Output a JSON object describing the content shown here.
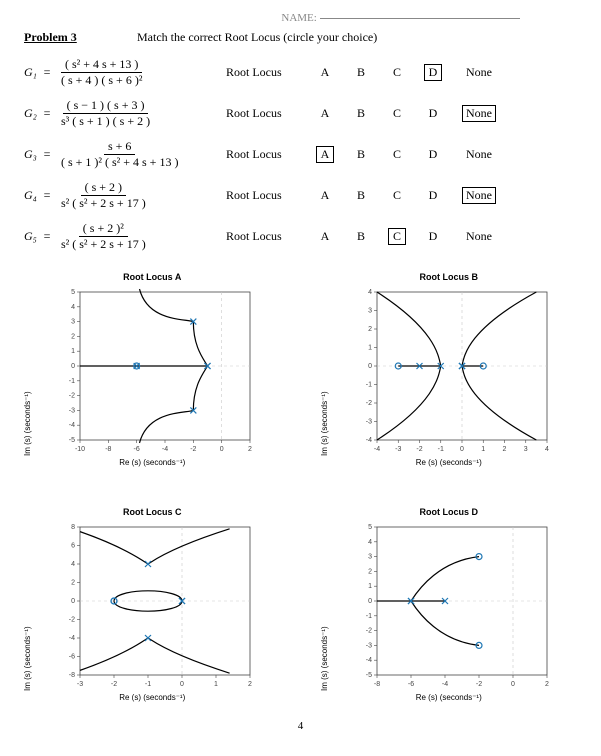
{
  "header": {
    "name_label": "NAME:",
    "problem_title": "Problem 3",
    "instructions": "Match the correct Root Locus (circle your choice)"
  },
  "rows": [
    {
      "gname": "G₁",
      "eq": "=",
      "num": "( s² + 4 s + 13 )",
      "den": "( s + 4 ) ( s + 6 )²",
      "label": "Root Locus",
      "choices": [
        "A",
        "B",
        "C",
        "D",
        "None"
      ],
      "selected_index": 3
    },
    {
      "gname": "G₂",
      "eq": "=",
      "num": "( s − 1 ) ( s + 3 )",
      "den": "s³ ( s + 1 ) ( s + 2 )",
      "label": "Root Locus",
      "choices": [
        "A",
        "B",
        "C",
        "D",
        "None"
      ],
      "selected_index": 4
    },
    {
      "gname": "G₃",
      "eq": "=",
      "num": "s + 6",
      "den": "( s + 1 )² ( s² + 4 s + 13 )",
      "label": "Root Locus",
      "choices": [
        "A",
        "B",
        "C",
        "D",
        "None"
      ],
      "selected_index": 0
    },
    {
      "gname": "G₄",
      "eq": "=",
      "num": "( s + 2 )",
      "den": "s² ( s² + 2 s + 17 )",
      "label": "Root Locus",
      "choices": [
        "A",
        "B",
        "C",
        "D",
        "None"
      ],
      "selected_index": 4
    },
    {
      "gname": "G₅",
      "eq": "=",
      "num": "( s + 2 )²",
      "den": "s² ( s² + 2 s + 17 )",
      "label": "Root Locus",
      "choices": [
        "A",
        "B",
        "C",
        "D",
        "None"
      ],
      "selected_index": 2
    }
  ],
  "plots": {
    "xlabel": "Re (s) (seconds⁻¹)",
    "ylabel": "Im (s) (seconds⁻¹)",
    "grid_color": "#e0e0e0",
    "axis_color": "#444444",
    "curve_color": "#000000",
    "marker_color": "#1f77b4",
    "background": "#ffffff",
    "titles": [
      "Root Locus  A",
      "Root Locus  B",
      "Root Locus  C",
      "Root Locus  D"
    ],
    "A": {
      "xlim": [
        -10,
        2
      ],
      "ylim": [
        -5,
        5
      ],
      "xticks": [
        -10,
        -8,
        -6,
        -4,
        -2,
        0,
        2
      ],
      "yticks": [
        -5,
        -4,
        -3,
        -2,
        -1,
        0,
        1,
        2,
        3,
        4,
        5
      ],
      "poles": [
        [
          -6,
          0
        ],
        [
          -1,
          0
        ],
        [
          -1,
          0
        ],
        [
          -2,
          3
        ],
        [
          -2,
          -3
        ]
      ],
      "zeros": [
        [
          -6,
          0
        ]
      ],
      "segments": [
        "M -6 0 L -10 0",
        "M -1 0 L -6 0",
        "M -2 3 C -2 1.3 -1.3 0.5 -1 0",
        "M -2 -3 C -2 -1.3 -1.3 -0.5 -1 0",
        "M -2 3 C -2.6 3.2 -5.2 3.0 -5.8 5.2",
        "M -2 -3 C -2.6 -3.2 -5.2 -3.0 -5.8 -5.2"
      ]
    },
    "B": {
      "xlim": [
        -4,
        4
      ],
      "ylim": [
        -4,
        4
      ],
      "xticks": [
        -4,
        -3,
        -2,
        -1,
        0,
        1,
        2,
        3,
        4
      ],
      "yticks": [
        -4,
        -3,
        -2,
        -1,
        0,
        1,
        2,
        3,
        4
      ],
      "poles": [
        [
          0,
          0
        ],
        [
          0,
          0
        ],
        [
          0,
          0
        ],
        [
          -1,
          0
        ],
        [
          -2,
          0
        ]
      ],
      "zeros": [
        [
          -3,
          0
        ],
        [
          1,
          0
        ]
      ],
      "segments": [
        "M 0 0 L 1 0",
        "M -1 0 L -2 0",
        "M -2 0 L -3 0",
        "M -1 0 C -1.1 0.6 -1.3 2.0 -4 4",
        "M -1 0 C -1.1 -0.6 -1.3 -2.0 -4 -4",
        "M 0 0 C 0.1 0.6 0.3 2.0 3.5 4",
        "M 0 0 C 0.1 -0.6 0.3 -2.0 3.5 -4"
      ]
    },
    "C": {
      "xlim": [
        -3,
        2
      ],
      "ylim": [
        -8,
        8
      ],
      "xticks": [
        -3,
        -2,
        -1,
        0,
        1,
        2
      ],
      "yticks": [
        -8,
        -6,
        -4,
        -2,
        0,
        2,
        4,
        6,
        8
      ],
      "poles": [
        [
          0,
          0
        ],
        [
          0,
          0
        ],
        [
          -1,
          4
        ],
        [
          -1,
          -4
        ]
      ],
      "zeros": [
        [
          -2,
          0
        ],
        [
          -2,
          0
        ]
      ],
      "segments": [
        "M 0 0 C 0 0.7 -0.5 1.1 -1 1.1 C -1.5 1.1 -2 0.7 -2 0",
        "M 0 0 C 0 -0.7 -0.5 -1.1 -1 -1.1 C -1.5 -1.1 -2 -0.7 -2 0",
        "M -1 4 C -1.1 4.2 -1.6 5.7 -3 7.5",
        "M -1 4 C -0.9 4.2 -0.4 5.7 1.4 7.8",
        "M -1 -4 C -1.1 -4.2 -1.6 -5.7 -3 -7.5",
        "M -1 -4 C -0.9 -4.2 -0.4 -5.7 1.4 -7.8"
      ]
    },
    "D": {
      "xlim": [
        -8,
        2
      ],
      "ylim": [
        -5,
        5
      ],
      "xticks": [
        -8,
        -6,
        -4,
        -2,
        0,
        2
      ],
      "yticks": [
        -5,
        -4,
        -3,
        -2,
        -1,
        0,
        1,
        2,
        3,
        4,
        5
      ],
      "poles": [
        [
          -4,
          0
        ],
        [
          -6,
          0
        ],
        [
          -6,
          0
        ]
      ],
      "zeros": [
        [
          -2,
          3
        ],
        [
          -2,
          -3
        ]
      ],
      "segments": [
        "M -4 0 L -6 0",
        "M -6 0 L -8 0",
        "M -6 0 C -5.5 0.9 -4.3 2.7 -2 3",
        "M -6 0 C -5.5 -0.9 -4.3 -2.7 -2 -3"
      ]
    }
  },
  "page_number": "4"
}
